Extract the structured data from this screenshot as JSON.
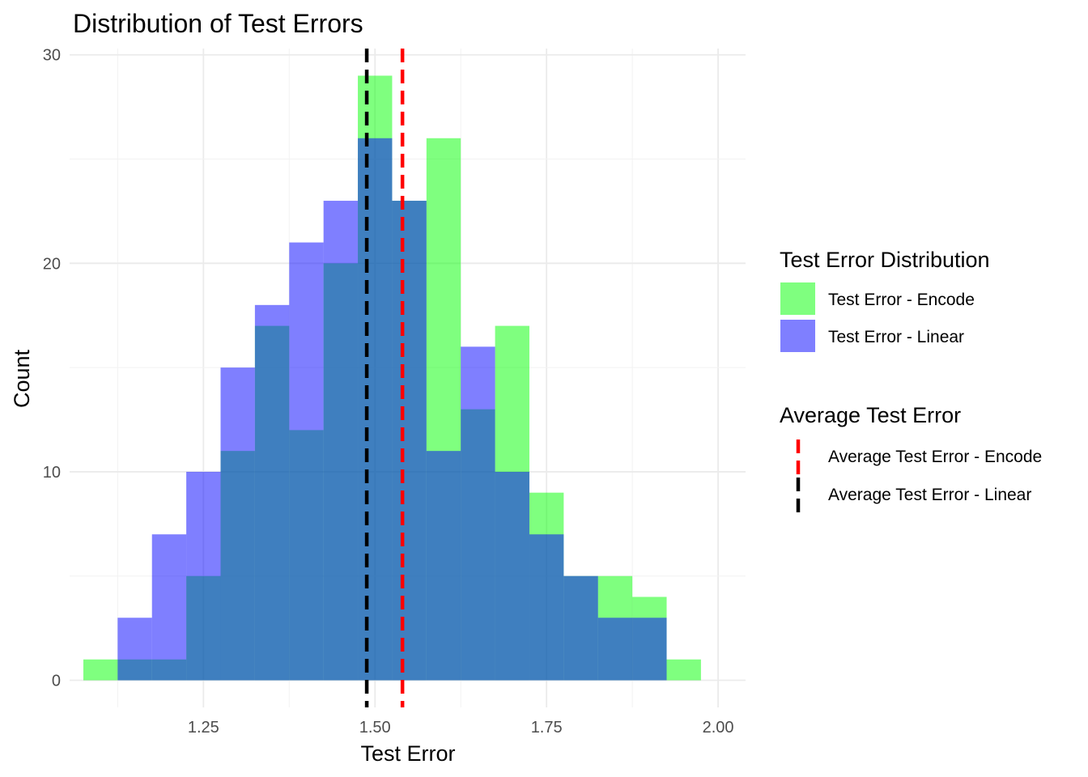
{
  "chart_data": {
    "type": "histogram",
    "title": "Distribution of Test Errors",
    "xlabel": "Test Error",
    "ylabel": "Count",
    "xlim": [
      1.055,
      2.04
    ],
    "ylim": [
      -1.3,
      30.3
    ],
    "x_ticks": [
      1.25,
      1.5,
      1.75,
      2.0
    ],
    "x_tick_labels": [
      "1.25",
      "1.50",
      "1.75",
      "2.00"
    ],
    "y_ticks": [
      0,
      10,
      20,
      30
    ],
    "y_tick_labels": [
      "0",
      "10",
      "20",
      "30"
    ],
    "grid": true,
    "bin_width": 0.05,
    "bin_starts": [
      1.075,
      1.125,
      1.175,
      1.225,
      1.275,
      1.325,
      1.375,
      1.425,
      1.475,
      1.525,
      1.575,
      1.625,
      1.675,
      1.725,
      1.775,
      1.825,
      1.875,
      1.925
    ],
    "series": [
      {
        "name": "Test Error - Encode",
        "color": "#00FF00",
        "opacity": 0.5,
        "values": [
          1,
          1,
          1,
          5,
          11,
          17,
          12,
          20,
          29,
          23,
          26,
          13,
          17,
          9,
          5,
          5,
          4,
          1
        ]
      },
      {
        "name": "Test Error - Linear",
        "color": "#0000FF",
        "opacity": 0.5,
        "values": [
          0,
          3,
          7,
          10,
          15,
          18,
          21,
          23,
          26,
          23,
          11,
          16,
          10,
          7,
          5,
          3,
          3,
          0
        ]
      }
    ],
    "vlines": [
      {
        "name": "Average Test Error - Encode",
        "x": 1.54,
        "color": "#FF0000",
        "linetype": "dashed"
      },
      {
        "name": "Average Test Error - Linear",
        "x": 1.488,
        "color": "#000000",
        "linetype": "dashed"
      }
    ],
    "legend_position": "right",
    "legends": [
      {
        "title": "Test Error Distribution",
        "items": [
          {
            "label": "Test Error - Encode",
            "color": "#00FF00",
            "opacity": 0.5
          },
          {
            "label": "Test Error - Linear",
            "color": "#0000FF",
            "opacity": 0.5
          }
        ]
      },
      {
        "title": "Average Test Error",
        "items": [
          {
            "label": "Average Test Error - Encode",
            "color": "#FF0000"
          },
          {
            "label": "Average Test Error - Linear",
            "color": "#000000"
          }
        ]
      }
    ]
  }
}
